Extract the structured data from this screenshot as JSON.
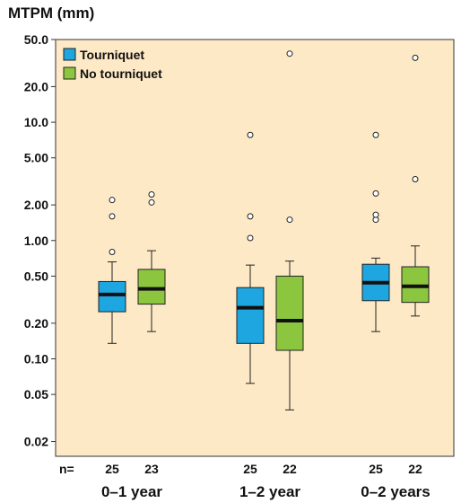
{
  "chart_data": {
    "type": "box",
    "title": "MTPM (mm)",
    "y_scale": "log",
    "ylim": [
      0.015,
      50
    ],
    "y_ticks": [
      50.0,
      20.0,
      10.0,
      5.0,
      2.0,
      1.0,
      0.5,
      0.2,
      0.1,
      0.05,
      0.02
    ],
    "y_tick_labels": [
      "50.0",
      "20.0",
      "10.0",
      "5.00",
      "2.00",
      "1.00",
      "0.50",
      "0.20",
      "0.10",
      "0.05",
      "0.02"
    ],
    "groups": [
      "0–1 year",
      "1–2 year",
      "0–2 years"
    ],
    "series": [
      {
        "name": "Tourniquet",
        "color": "#1ea6e0"
      },
      {
        "name": "No tourniquet",
        "color": "#8cc63f"
      }
    ],
    "boxes": [
      {
        "group": "0–1 year",
        "series": "Tourniquet",
        "min": 0.135,
        "q1": 0.25,
        "median": 0.35,
        "q3": 0.45,
        "max": 0.66,
        "outliers": [
          0.8,
          1.6,
          2.2
        ],
        "n": 25
      },
      {
        "group": "0–1 year",
        "series": "No tourniquet",
        "min": 0.17,
        "q1": 0.29,
        "median": 0.39,
        "q3": 0.57,
        "max": 0.82,
        "outliers": [
          2.1,
          2.45
        ],
        "n": 23
      },
      {
        "group": "1–2 year",
        "series": "Tourniquet",
        "min": 0.062,
        "q1": 0.135,
        "median": 0.27,
        "q3": 0.4,
        "max": 0.62,
        "outliers": [
          1.05,
          1.6,
          7.8
        ],
        "n": 25
      },
      {
        "group": "1–2 year",
        "series": "No tourniquet",
        "min": 0.037,
        "q1": 0.118,
        "median": 0.21,
        "q3": 0.5,
        "max": 0.67,
        "outliers": [
          1.5,
          38
        ],
        "n": 22
      },
      {
        "group": "0–2 years",
        "series": "Tourniquet",
        "min": 0.17,
        "q1": 0.31,
        "median": 0.44,
        "q3": 0.63,
        "max": 0.71,
        "outliers": [
          1.5,
          1.65,
          2.5,
          7.8
        ],
        "n": 25
      },
      {
        "group": "0–2 years",
        "series": "No tourniquet",
        "min": 0.23,
        "q1": 0.3,
        "median": 0.41,
        "q3": 0.6,
        "max": 0.9,
        "outliers": [
          3.3,
          35
        ],
        "n": 22
      }
    ],
    "n_label": "n=",
    "legend_position": "top-left",
    "background": "#fde9c6"
  }
}
